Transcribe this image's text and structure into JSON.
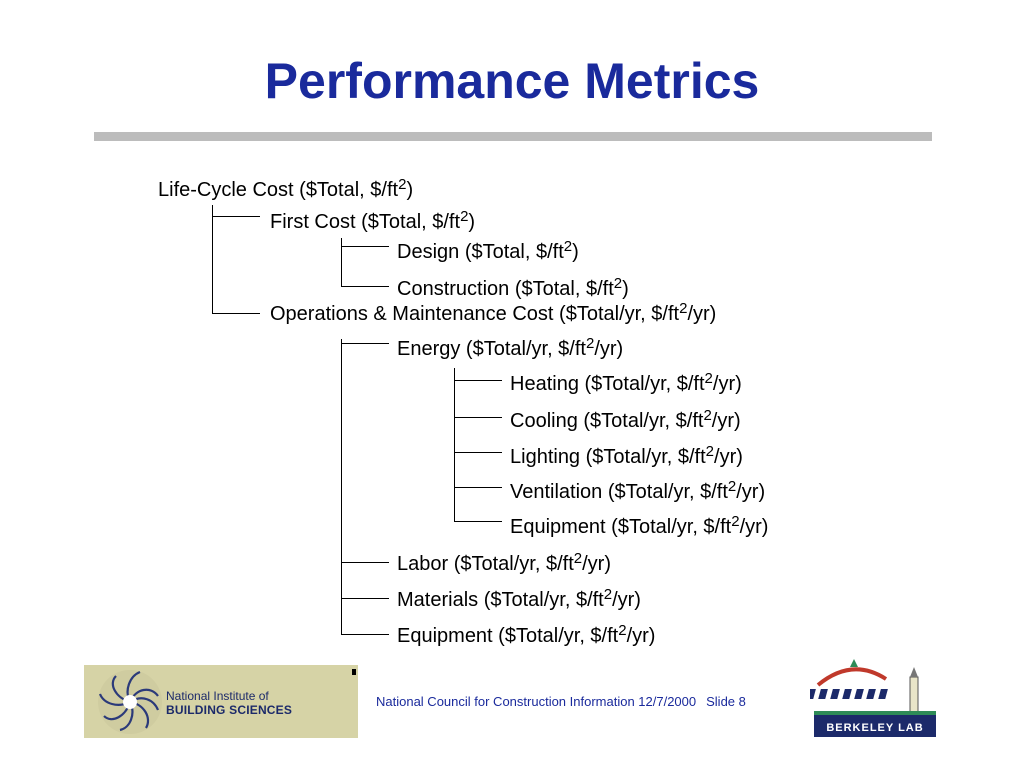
{
  "slide": {
    "title": "Performance Metrics",
    "footer": "National Council for Construction Information 12/7/2000",
    "slide_number": "Slide 8"
  },
  "logos": {
    "left": {
      "icon": "swirl-logo",
      "line1": "National Institute of",
      "line2": "BUILDING SCIENCES"
    },
    "right": {
      "icon": "berkeley-lab-logo",
      "text": "BERKELEY LAB"
    }
  },
  "tree": {
    "lcc": {
      "text": "Life-Cycle Cost ($Total, $/ft",
      "sup": "2",
      "after": ")"
    },
    "first": {
      "text": "First Cost ($Total, $/ft",
      "sup": "2",
      "after": ")"
    },
    "design": {
      "text": "Design ($Total, $/ft",
      "sup": "2",
      "after": ")"
    },
    "construction": {
      "text": "Construction ($Total, $/ft",
      "sup": "2",
      "after": ")"
    },
    "om": {
      "text": "Operations & Maintenance Cost ($Total/yr, $/ft",
      "sup": "2",
      "after": "/yr)"
    },
    "energy": {
      "text": "Energy ($Total/yr, $/ft",
      "sup": "2",
      "after": "/yr)"
    },
    "heating": {
      "text": "Heating ($Total/yr, $/ft",
      "sup": "2",
      "after": "/yr)"
    },
    "cooling": {
      "text": "Cooling ($Total/yr, $/ft",
      "sup": "2",
      "after": "/yr)"
    },
    "lighting": {
      "text": "Lighting ($Total/yr, $/ft",
      "sup": "2",
      "after": "/yr)"
    },
    "ventilation": {
      "text": "Ventilation ($Total/yr, $/ft",
      "sup": "2",
      "after": "/yr)"
    },
    "equipment_energy": {
      "text": "Equipment ($Total/yr, $/ft",
      "sup": "2",
      "after": "/yr)"
    },
    "labor": {
      "text": "Labor ($Total/yr, $/ft",
      "sup": "2",
      "after": "/yr)"
    },
    "materials": {
      "text": "Materials ($Total/yr, $/ft",
      "sup": "2",
      "after": "/yr)"
    },
    "equipment_om": {
      "text": "Equipment ($Total/yr, $/ft",
      "sup": "2",
      "after": "/yr)"
    }
  },
  "colors": {
    "title": "#1a2a9c",
    "rule": "#bcbcbc",
    "footer_text": "#1a2a9c",
    "nibs_panel": "#d6d3a6"
  }
}
